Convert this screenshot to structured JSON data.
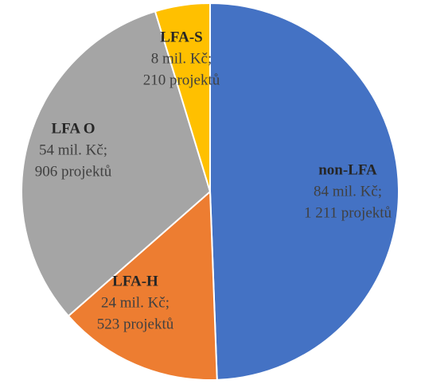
{
  "chart_data": {
    "type": "pie",
    "categories": [
      "non-LFA",
      "LFA-H",
      "LFA O",
      "LFA-S"
    ],
    "values": [
      84,
      24,
      54,
      8
    ],
    "value_labels": [
      "84 mil. Kč;",
      "24 mil. Kč;",
      "54 mil. Kč;",
      "8 mil. Kč;"
    ],
    "project_labels": [
      "1 211 projektů",
      "523 projektů",
      "906 projektů",
      "210 projektů"
    ],
    "colors": [
      "#4472c4",
      "#ed7d31",
      "#a5a5a5",
      "#ffc000"
    ]
  }
}
